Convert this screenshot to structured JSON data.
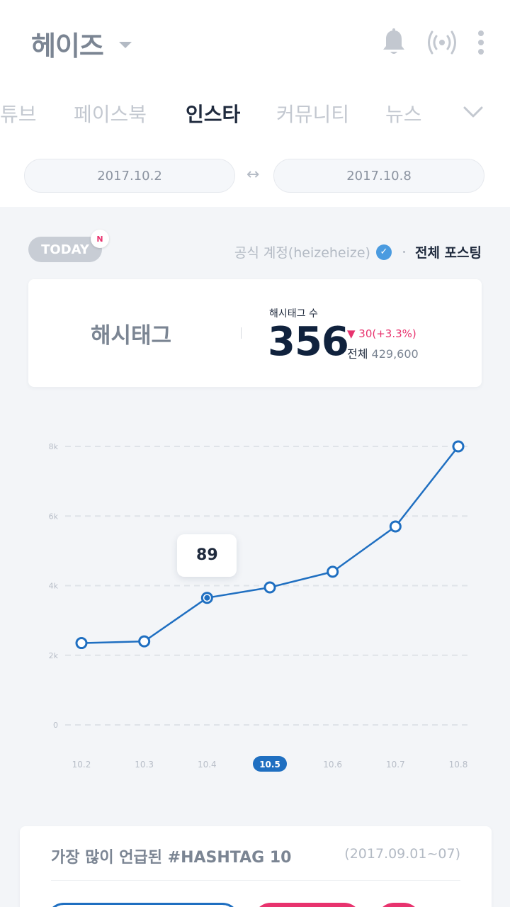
{
  "header": {
    "artist_name": "헤이즈",
    "icons": [
      "bell-icon",
      "broadcast-icon",
      "more-vertical-icon"
    ]
  },
  "tabs": [
    {
      "label": "튜브",
      "active": false
    },
    {
      "label": "페이스북",
      "active": false
    },
    {
      "label": "인스타",
      "active": true
    },
    {
      "label": "커뮤니티",
      "active": false
    },
    {
      "label": "뉴스",
      "active": false
    }
  ],
  "date_range": {
    "start": "2017.10.2",
    "end": "2017.10.8",
    "separator": "↔"
  },
  "today_badge": {
    "label": "TODAY",
    "new_marker": "N"
  },
  "account_filter": {
    "official": "공식 계정(heizeheize)",
    "all_posting": "전체 포스팅"
  },
  "stat": {
    "label": "해시태그",
    "caption": "해시태그 수",
    "value": "356",
    "change": "▼ 30(+3.3%)",
    "total_label": "전체",
    "total_value": "429,600"
  },
  "chart_data": {
    "type": "line",
    "categories": [
      "10.2",
      "10.3",
      "10.4",
      "10.5",
      "10.6",
      "10.7",
      "10.8"
    ],
    "values": [
      2350,
      2400,
      3650,
      3950,
      4400,
      5700,
      8000
    ],
    "y_ticks": [
      "0",
      "2k",
      "4k",
      "6k",
      "8k"
    ],
    "ylim": [
      0,
      8000
    ],
    "grid": true,
    "highlight_index": 2,
    "tooltip_value": "89",
    "selected_category": "10.5",
    "colors": {
      "line": "#1f6fc1",
      "selected": "#1f6fc1",
      "grid": "#dfe3e8",
      "label": "#b8bec8"
    }
  },
  "ranking": {
    "title": "가장 많이 언급된 #HASHTAG 10",
    "range": "(2017.09.01~07)"
  },
  "colors": {
    "accent": "#1f6fc1",
    "pink": "#e8336e",
    "background": "#f3f5f8"
  }
}
